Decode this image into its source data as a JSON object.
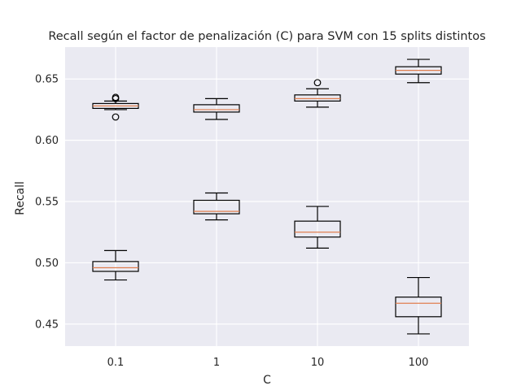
{
  "chart_data": {
    "type": "box",
    "title": "Recall según el factor de penalización (C) para SVM con 15 splits distintos",
    "xlabel": "C",
    "ylabel": "Recall",
    "categories": [
      "0.1",
      "1",
      "10",
      "100"
    ],
    "ylim": [
      0.432,
      0.676
    ],
    "yticks": [
      0.45,
      0.5,
      0.55,
      0.6,
      0.65
    ],
    "ytick_labels": [
      "0.45",
      "0.50",
      "0.55",
      "0.60",
      "0.65"
    ],
    "grid": true,
    "series": [
      {
        "boxes": [
          {
            "whisker_low": 0.625,
            "q1": 0.626,
            "median": 0.628,
            "q3": 0.63,
            "whisker_high": 0.632,
            "outliers": [
              0.635,
              0.634,
              0.619
            ]
          },
          {
            "whisker_low": 0.617,
            "q1": 0.623,
            "median": 0.625,
            "q3": 0.629,
            "whisker_high": 0.634,
            "outliers": []
          },
          {
            "whisker_low": 0.627,
            "q1": 0.632,
            "median": 0.634,
            "q3": 0.637,
            "whisker_high": 0.642,
            "outliers": [
              0.647
            ]
          },
          {
            "whisker_low": 0.647,
            "q1": 0.654,
            "median": 0.657,
            "q3": 0.66,
            "whisker_high": 0.666,
            "outliers": []
          }
        ]
      },
      {
        "boxes": [
          {
            "whisker_low": 0.486,
            "q1": 0.493,
            "median": 0.496,
            "q3": 0.501,
            "whisker_high": 0.51,
            "outliers": []
          },
          {
            "whisker_low": 0.535,
            "q1": 0.54,
            "median": 0.542,
            "q3": 0.551,
            "whisker_high": 0.557,
            "outliers": []
          },
          {
            "whisker_low": 0.512,
            "q1": 0.521,
            "median": 0.525,
            "q3": 0.534,
            "whisker_high": 0.546,
            "outliers": []
          },
          {
            "whisker_low": 0.442,
            "q1": 0.456,
            "median": 0.467,
            "q3": 0.472,
            "whisker_high": 0.488,
            "outliers": []
          }
        ]
      }
    ],
    "colors": {
      "plot_background": "#eaeaf2",
      "grid": "#ffffff",
      "box_edge": "#000000",
      "median": "#e07f50",
      "text": "#262626"
    }
  }
}
